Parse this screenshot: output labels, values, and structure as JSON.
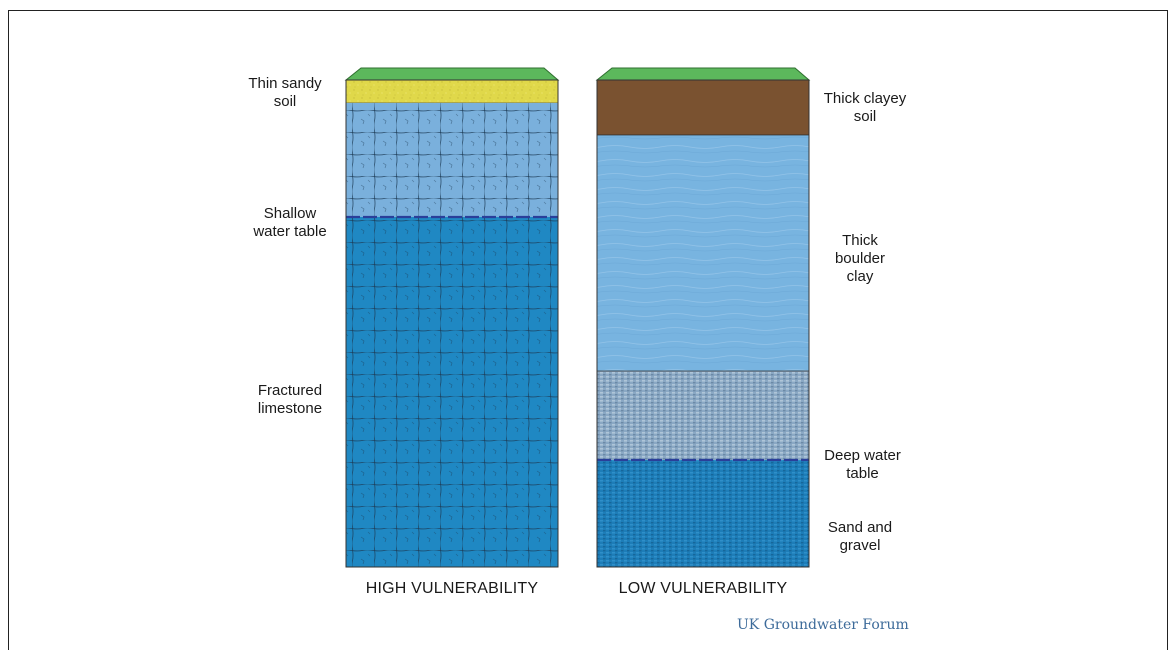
{
  "diagram": {
    "left_column": {
      "caption": "HIGH VULNERABILITY",
      "layers": {
        "surface": "Thin sandy soil",
        "water_table": "Shallow water table",
        "aquifer": "Fractured limestone"
      },
      "labels": {
        "soil_line1": "Thin sandy",
        "soil_line2": "soil",
        "water_line1": "Shallow",
        "water_line2": "water table",
        "rock_line1": "Fractured",
        "rock_line2": "limestone"
      }
    },
    "right_column": {
      "caption": "LOW VULNERABILITY",
      "labels": {
        "soil_line1": "Thick clayey",
        "soil_line2": "soil",
        "clay_line1": "Thick",
        "clay_line2": "boulder",
        "clay_line3": "clay",
        "water_line1": "Deep water",
        "water_line2": "table",
        "sand_line1": "Sand and",
        "sand_line2": "gravel"
      }
    },
    "credit": "UK Groundwater Forum",
    "colors": {
      "grass": "#5cb85c",
      "sandy_soil": "#e0d84a",
      "unsaturated_limestone": "#7ab0dc",
      "saturated_limestone": "#1f88c3",
      "clayey_soil": "#7a5230",
      "boulder_clay": "#78b4e0",
      "gravel_unsaturated": "#8aa8c4",
      "gravel_saturated": "#1d7db8",
      "water_table_line": "#2a3f9a",
      "credit_text": "#3d6b9a"
    }
  }
}
